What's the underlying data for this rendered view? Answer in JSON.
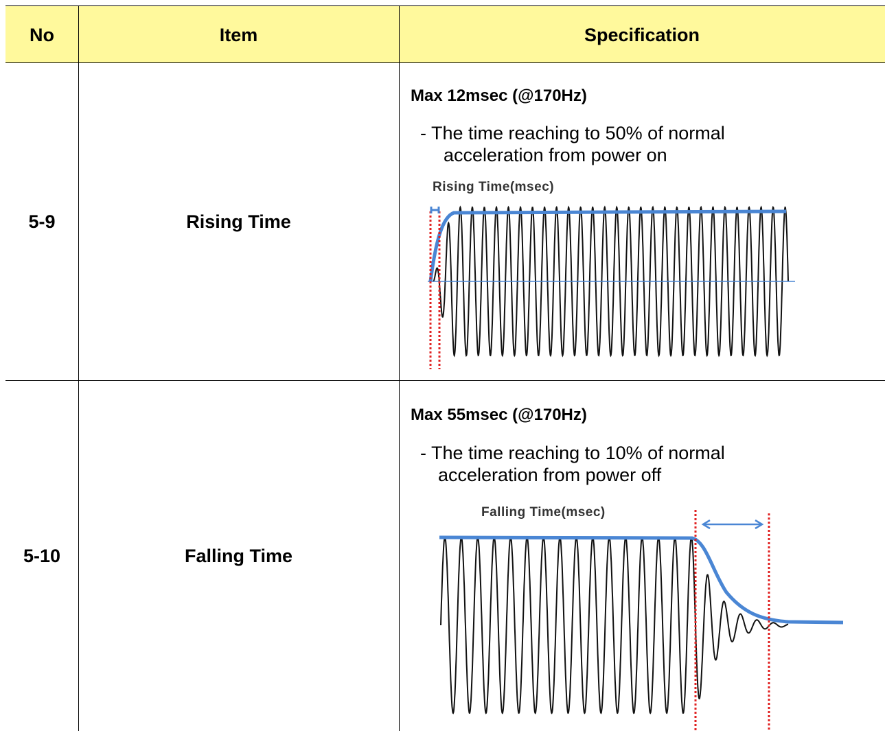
{
  "header": {
    "no": "No",
    "item": "Item",
    "specification": "Specification",
    "bg_color": "#fff99c"
  },
  "rows": [
    {
      "no": "5-9",
      "item": "Rising  Time",
      "spec_title": "Max  12msec (@170Hz)",
      "spec_desc_line1": "- The time reaching to 50% of  normal",
      "spec_desc_line2": "acceleration from power on",
      "chart_label": "Rising Time(msec)"
    },
    {
      "no": "5-10",
      "item": "Falling  Time",
      "spec_title": "Max  55msec (@170Hz)",
      "spec_desc_line1": "- The time reaching to 10% of normal",
      "spec_desc_line2": "acceleration from power off",
      "chart_label": "Falling Time(msec)"
    }
  ],
  "colors": {
    "envelope": "#4a86d4",
    "marker": "#e02020",
    "wave": "#111111"
  }
}
